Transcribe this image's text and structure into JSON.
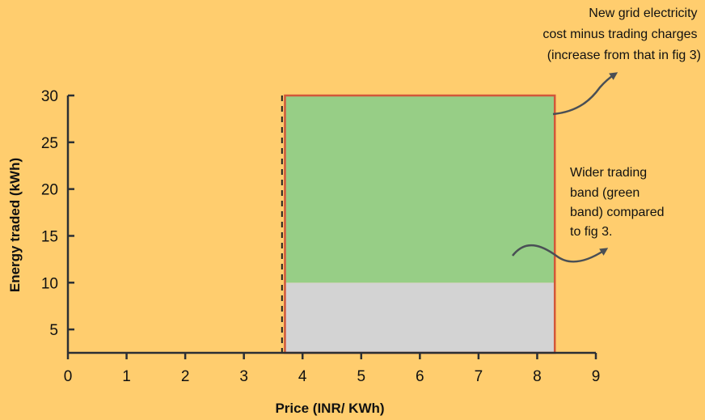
{
  "chart_data": {
    "type": "area",
    "xlabel": "Price (INR/ KWh)",
    "ylabel": "Energy traded (kWh)",
    "xlim": [
      0,
      9
    ],
    "ylim": [
      2.5,
      30
    ],
    "x_ticks": [
      0,
      1,
      2,
      3,
      4,
      5,
      6,
      7,
      8,
      9
    ],
    "y_ticks": [
      5,
      10,
      15,
      20,
      25,
      30
    ],
    "band": {
      "x_min": 3.7,
      "x_max": 8.3,
      "y_min": 2.5,
      "y_max": 30
    },
    "regions": [
      {
        "x_min": 3.7,
        "x_max": 8.3,
        "y_min": 2.5,
        "y_max": 10,
        "color": "#D3D3D3"
      },
      {
        "x_min": 3.7,
        "x_max": 8.3,
        "y_min": 10,
        "y_max": 30,
        "color": "#97CE86"
      }
    ],
    "band_border_color": "#D2573A",
    "reference_line": {
      "x": 3.65,
      "style": "dashed"
    },
    "annotations": [
      {
        "lines": [
          "New grid electricity",
          "cost minus trading charges",
          "(increase from that in fig 3)"
        ]
      },
      {
        "lines": [
          "Wider trading",
          "band (green",
          "band) compared",
          "to fig 3."
        ]
      }
    ]
  }
}
